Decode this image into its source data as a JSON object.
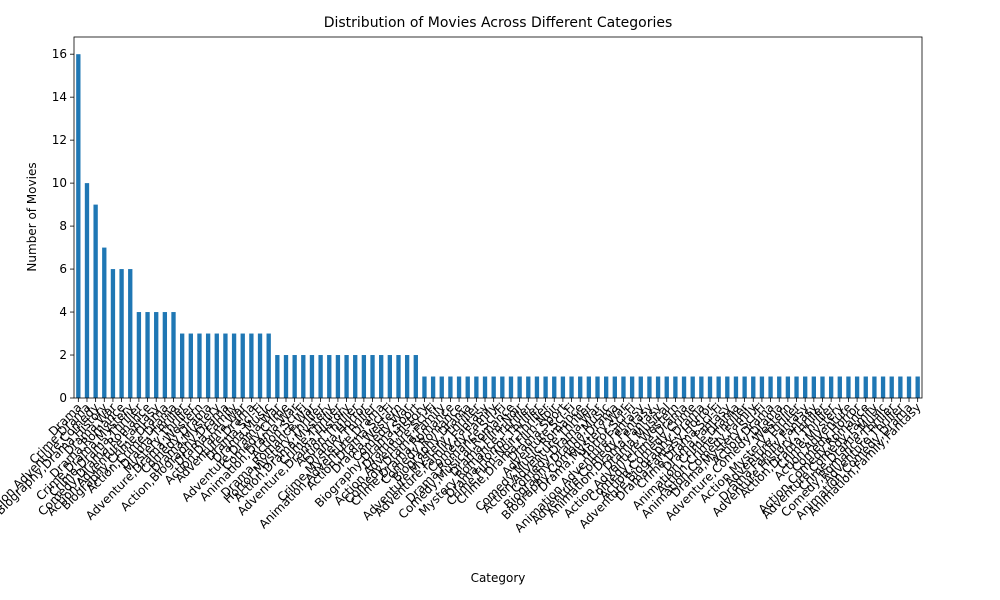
{
  "chart_data": {
    "type": "bar",
    "title": "Distribution of Movies Across Different Categories",
    "x_label": "Category",
    "y_label": "Number of Movies",
    "categories": [
      "Drama",
      "Crime,Drama",
      "Animation,Adventure,Comedy",
      "Biography,Drama,History",
      "Drama,War",
      "Drama,Romance",
      "Crime,Drama,Mystery",
      "Crime,Drama,Thriller",
      "Comedy,Drama,Romance",
      "Action,Adventure,Fantasy",
      "Biography,Crime,Drama",
      "Action,Crime,Drama",
      "Drama,Thriller",
      "Mystery,Thriller",
      "Adventure,Drama,Western",
      "Comedy,Drama",
      "Drama,Mystery",
      "Action,Biography,Drama",
      "Drama,Family",
      "Action,Drama,War",
      "Adventure,Drama",
      "Drama,Sci-Fi",
      "Drama,Music",
      "Adventure,Drama,War",
      "Comedy,Crime",
      "Animation,Drama,War",
      "Action,Sci-Fi",
      "Drama,Romance,War",
      "Horror,Mystery,Thriller",
      "Action,Drama,Mystery",
      "Crime,Thriller",
      "Adventure,Drama,History",
      "Action,Thriller",
      "Drama,Horror",
      "Crime,Mystery,Thriller",
      "Animation,Adventure,Drama",
      "Action,Drama,Sci-Fi",
      "Drama,Western",
      "Comedy,War",
      "Biography,Drama,Sport",
      "Drama,History",
      "Action,Adventure,Sci-Fi",
      "Comedy,Drama,Family",
      "Crime,Drama,Romance",
      "Comedy,Romance",
      "Biography,Drama",
      "Adventure,Mystery,Thriller",
      "Adventure,Family,Fantasy",
      "Comedy,Family",
      "Drama,Romance,Sci-Fi",
      "Comedy,Musical,Romance",
      "Drama,Film-Noir",
      "Mystery,Romance,Thriller",
      "Drama,Horror,Thriller",
      "Crime,Film-Noir,Thriller",
      "Crime,Drama,Film-Noir",
      "Drama,Sport",
      "Adventure,Sci-Fi",
      "Comedy,Music,Romance",
      "Action,Adventure,Thriller",
      "Comedy,Drama,War",
      "Biography,Drama,Music",
      "Biography,Comedy,Drama",
      "Drama,Mystery,War",
      "Horror,Sci-Fi",
      "Animation,Adventure,Fantasy",
      "Adventure,Comedy,Fantasy",
      "Animation,Drama,Fantasy",
      "Drama,Musical",
      "Action,Adventure,Western",
      "Comedy,Crime,Drama",
      "Action,Comedy,Crime",
      "Adventure,Biography,Drama",
      "Drama,Fantasy,Horror",
      "Crime,Drama,Sci-Fi",
      "Drama,Fantasy",
      "Animation,Crime,Drama",
      "Action,Crime,Thriller",
      "Animation,Comedy,Family",
      "Drama,Mystery,Sci-Fi",
      "Action,Drama",
      "Adventure,Comedy,Drama",
      "Western",
      "Action,Mystery,Thriller",
      "Adventure,Fantasy",
      "Drama,Family,Fantasy",
      "Adventure,History,Thriller",
      "Action,Drama,Thriller",
      "Crime,Mystery",
      "Action,Adventure",
      "Comedy,Horror",
      "Action,Comedy,Romance",
      "Adventure,Comedy,Family",
      "Crime,Drama,Music",
      "Comedy,Romance,Thriller",
      "Adventure,Thriller",
      "Animation,Comedy,Drama",
      "Animation,Family,Fantasy"
    ],
    "values": [
      16,
      10,
      9,
      7,
      6,
      6,
      6,
      4,
      4,
      4,
      4,
      4,
      3,
      3,
      3,
      3,
      3,
      3,
      3,
      3,
      3,
      3,
      3,
      2,
      2,
      2,
      2,
      2,
      2,
      2,
      2,
      2,
      2,
      2,
      2,
      2,
      2,
      2,
      2,
      2,
      1,
      1,
      1,
      1,
      1,
      1,
      1,
      1,
      1,
      1,
      1,
      1,
      1,
      1,
      1,
      1,
      1,
      1,
      1,
      1,
      1,
      1,
      1,
      1,
      1,
      1,
      1,
      1,
      1,
      1,
      1,
      1,
      1,
      1,
      1,
      1,
      1,
      1,
      1,
      1,
      1,
      1,
      1,
      1,
      1,
      1,
      1,
      1,
      1,
      1,
      1,
      1,
      1,
      1,
      1,
      1,
      1,
      1
    ],
    "color": "#1f77b4",
    "ylim": [
      0,
      16.8
    ],
    "yticks": [
      0,
      2,
      4,
      6,
      8,
      10,
      12,
      14,
      16
    ],
    "grid": false
  }
}
